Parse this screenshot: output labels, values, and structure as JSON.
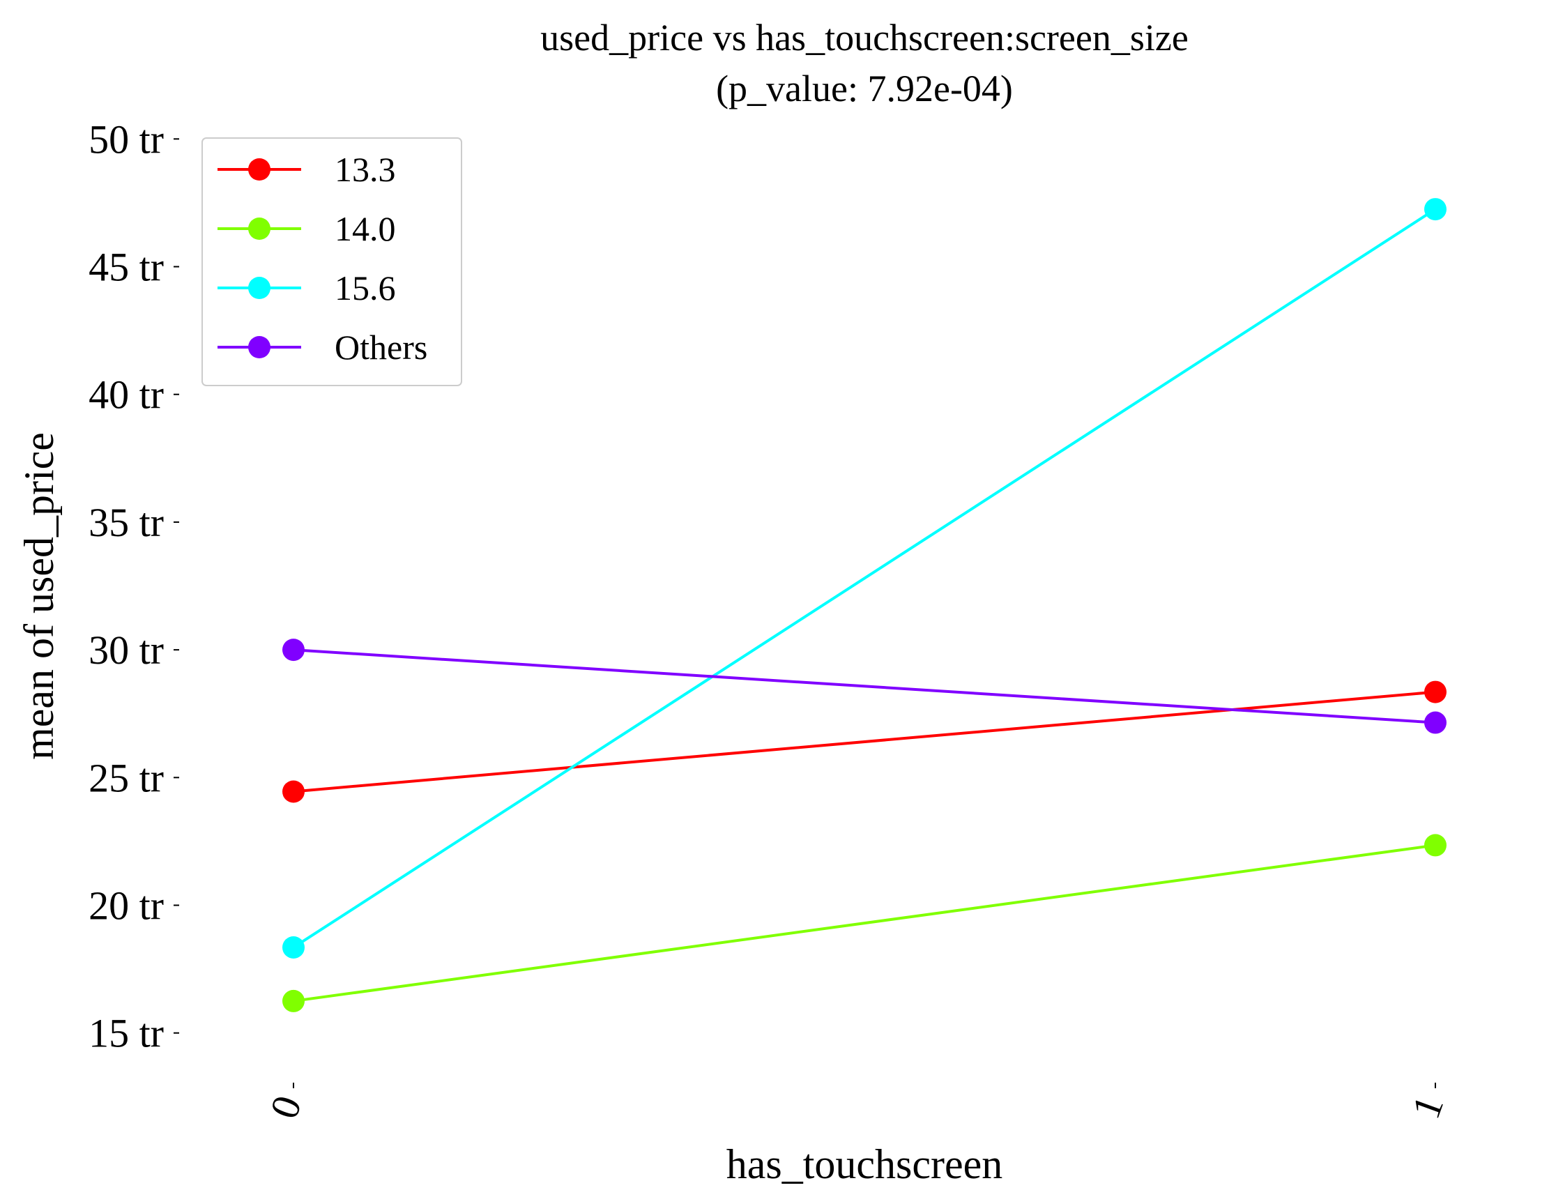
{
  "chart_data": {
    "type": "line",
    "title": "used_price vs has_touchscreen:screen_size",
    "subtitle": "(p_value: 7.92e-04)",
    "xlabel": "has_touchscreen",
    "ylabel": "mean of used_price",
    "categories": [
      "0",
      "1"
    ],
    "y_ticks": [
      15,
      20,
      25,
      30,
      35,
      40,
      45,
      50
    ],
    "y_tick_labels": [
      "15 tr",
      "20 tr",
      "25 tr",
      "30 tr",
      "35 tr",
      "40 tr",
      "45 tr",
      "50 tr"
    ],
    "ylim": [
      13,
      50.5
    ],
    "grid": false,
    "legend_position": "top-left",
    "series": [
      {
        "name": "13.3",
        "color": "#ff0000",
        "values": [
          24.45,
          28.35
        ]
      },
      {
        "name": "14.0",
        "color": "#80ff00",
        "values": [
          16.25,
          22.35
        ]
      },
      {
        "name": "15.6",
        "color": "#00ffff",
        "values": [
          18.35,
          47.25
        ]
      },
      {
        "name": "Others",
        "color": "#8000ff",
        "values": [
          30.0,
          27.15
        ]
      }
    ]
  }
}
